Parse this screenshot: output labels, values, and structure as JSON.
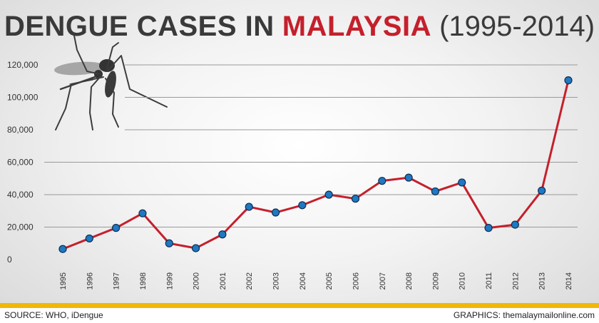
{
  "chart_data": {
    "type": "line",
    "title": {
      "main": "DENGUE CASES IN",
      "country": "MALAYSIA",
      "years": "(1995-2014)"
    },
    "xlabel": "",
    "ylabel": "",
    "ylim": [
      0,
      120000
    ],
    "yticks": [
      {
        "value": 0,
        "label": "0"
      },
      {
        "value": 20000,
        "label": "20,000"
      },
      {
        "value": 40000,
        "label": "40,000"
      },
      {
        "value": 60000,
        "label": "60,000"
      },
      {
        "value": 80000,
        "label": "80,000"
      },
      {
        "value": 100000,
        "label": "100,000"
      },
      {
        "value": 120000,
        "label": "120,000"
      }
    ],
    "grid": true,
    "categories": [
      "1995",
      "1996",
      "1997",
      "1998",
      "1999",
      "2000",
      "2001",
      "2002",
      "2003",
      "2004",
      "2005",
      "2006",
      "2007",
      "2008",
      "2009",
      "2010",
      "2011",
      "2012",
      "2013",
      "2014"
    ],
    "values": [
      6500,
      13000,
      19500,
      28500,
      10000,
      7000,
      15500,
      32500,
      29000,
      33500,
      40000,
      37500,
      48500,
      50500,
      42000,
      47500,
      19500,
      21500,
      42500,
      110500
    ],
    "colors": {
      "line": "#c4202c",
      "marker_fill": "#1f78c1",
      "marker_stroke": "#0d2f52",
      "grid": "#9a9a9a",
      "title_accent": "#c4202c",
      "footer_bar": "#f2b705"
    },
    "decoration_icon": "mosquito-icon"
  },
  "footer": {
    "source": "SOURCE: WHO, iDengue",
    "credit": "GRAPHICS: themalaymailonline.com"
  }
}
